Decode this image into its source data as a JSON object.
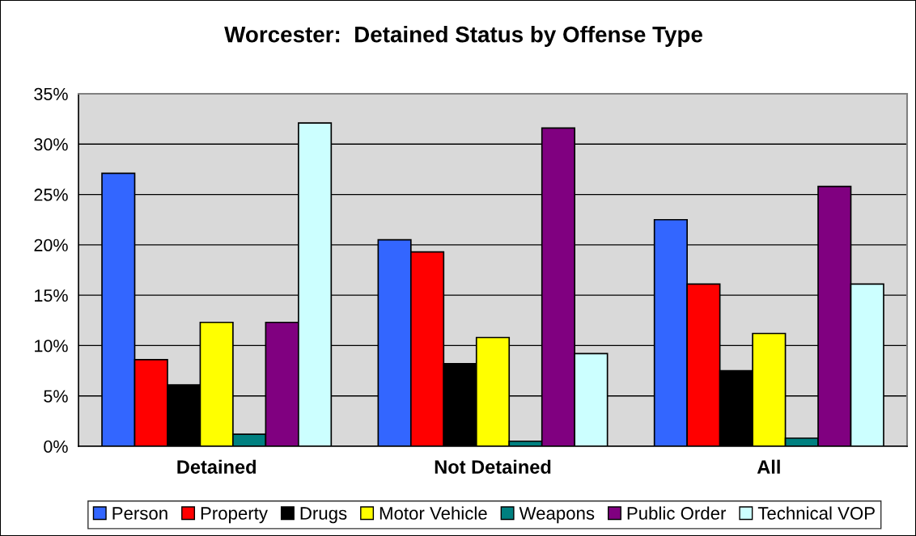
{
  "chart_data": {
    "type": "bar",
    "title": "Worcester:  Detained Status by Offense Type",
    "categories": [
      "Detained",
      "Not Detained",
      "All"
    ],
    "series": [
      {
        "name": "Person",
        "color": "#3366ff",
        "values": [
          27.1,
          20.5,
          22.5
        ]
      },
      {
        "name": "Property",
        "color": "#ff0000",
        "values": [
          8.6,
          19.3,
          16.1
        ]
      },
      {
        "name": "Drugs",
        "color": "#000000",
        "values": [
          6.1,
          8.2,
          7.5
        ]
      },
      {
        "name": "Motor Vehicle",
        "color": "#ffff00",
        "values": [
          12.3,
          10.8,
          11.2
        ]
      },
      {
        "name": "Weapons",
        "color": "#008080",
        "values": [
          1.2,
          0.5,
          0.8
        ]
      },
      {
        "name": "Public Order",
        "color": "#800080",
        "values": [
          12.3,
          31.6,
          25.8
        ]
      },
      {
        "name": "Technical VOP",
        "color": "#ccffff",
        "values": [
          32.1,
          9.2,
          16.1
        ]
      }
    ],
    "ylim": [
      0,
      35
    ],
    "yticks": [
      {
        "value": 0,
        "label": "0%"
      },
      {
        "value": 5,
        "label": "5%"
      },
      {
        "value": 10,
        "label": "10%"
      },
      {
        "value": 15,
        "label": "15%"
      },
      {
        "value": 20,
        "label": "20%"
      },
      {
        "value": 25,
        "label": "25%"
      },
      {
        "value": 30,
        "label": "30%"
      },
      {
        "value": 35,
        "label": "35%"
      }
    ],
    "grid": "y",
    "legend": "bottom"
  }
}
